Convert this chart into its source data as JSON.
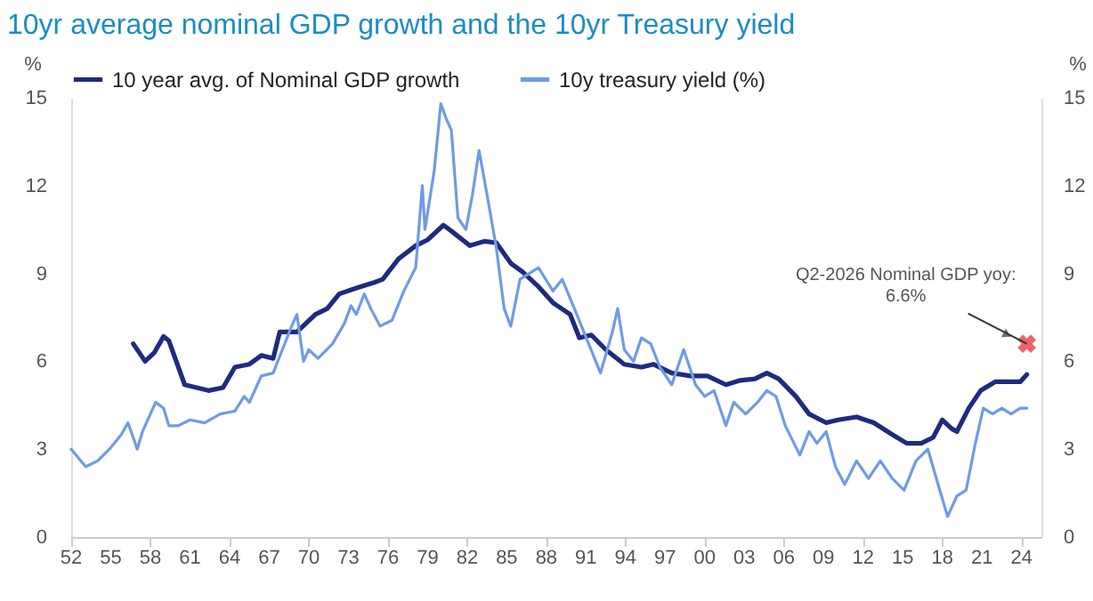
{
  "chart_data": {
    "type": "line",
    "title": "10yr average nominal GDP growth and the 10yr Treasury yield",
    "ylabel": "%",
    "y2label": "%",
    "xlim": [
      1952,
      2025.5
    ],
    "xticks": [
      {
        "value": 1952,
        "label": "52"
      },
      {
        "value": 1955,
        "label": "55"
      },
      {
        "value": 1958,
        "label": "58"
      },
      {
        "value": 1961,
        "label": "61"
      },
      {
        "value": 1964,
        "label": "64"
      },
      {
        "value": 1967,
        "label": "67"
      },
      {
        "value": 1970,
        "label": "70"
      },
      {
        "value": 1973,
        "label": "73"
      },
      {
        "value": 1976,
        "label": "76"
      },
      {
        "value": 1979,
        "label": "79"
      },
      {
        "value": 1982,
        "label": "82"
      },
      {
        "value": 1985,
        "label": "85"
      },
      {
        "value": 1988,
        "label": "88"
      },
      {
        "value": 1991,
        "label": "91"
      },
      {
        "value": 1994,
        "label": "94"
      },
      {
        "value": 1997,
        "label": "97"
      },
      {
        "value": 2000,
        "label": "00"
      },
      {
        "value": 2003,
        "label": "03"
      },
      {
        "value": 2006,
        "label": "06"
      },
      {
        "value": 2009,
        "label": "09"
      },
      {
        "value": 2012,
        "label": "12"
      },
      {
        "value": 2015,
        "label": "15"
      },
      {
        "value": 2018,
        "label": "18"
      },
      {
        "value": 2021,
        "label": "21"
      },
      {
        "value": 2024,
        "label": "24"
      }
    ],
    "ylim": [
      0,
      15
    ],
    "yticks": [
      0,
      3,
      6,
      9,
      12,
      15
    ],
    "y2lim": [
      0,
      15
    ],
    "y2ticks": [
      0,
      3,
      6,
      9,
      12,
      15
    ],
    "legend": "top",
    "grid": false,
    "marker": "none",
    "series": [
      {
        "name": "10 year avg. of Nominal GDP growth",
        "color": "#1f2a80",
        "x": [
          1956.7,
          1957.6,
          1958.3,
          1959.0,
          1959.4,
          1960.6,
          1961.5,
          1962.4,
          1963.5,
          1964.4,
          1965.5,
          1966.4,
          1967.3,
          1967.8,
          1969.1,
          1970.5,
          1971.4,
          1972.3,
          1973.6,
          1975.0,
          1975.6,
          1976.8,
          1978.1,
          1979.0,
          1980.2,
          1980.8,
          1982.2,
          1983.3,
          1984.2,
          1985.3,
          1986.2,
          1987.4,
          1988.5,
          1989.8,
          1990.5,
          1991.4,
          1992.5,
          1993.9,
          1995.2,
          1996.1,
          1997.5,
          1998.9,
          2000.2,
          2001.6,
          2002.7,
          2003.8,
          2004.7,
          2005.6,
          2006.9,
          2007.9,
          2009.2,
          2010.1,
          2011.5,
          2012.8,
          2014.2,
          2015.3,
          2016.4,
          2017.3,
          2018.0,
          2018.7,
          2019.1,
          2020.0,
          2020.9,
          2022.0,
          2023.2,
          2023.9,
          2024.4
        ],
        "values": [
          6.6,
          6.0,
          6.3,
          6.85,
          6.7,
          5.2,
          5.1,
          5.0,
          5.1,
          5.8,
          5.9,
          6.2,
          6.1,
          7.0,
          7.0,
          7.6,
          7.8,
          8.3,
          8.5,
          8.7,
          8.8,
          9.5,
          9.95,
          10.15,
          10.65,
          10.45,
          9.95,
          10.1,
          10.05,
          9.35,
          9.05,
          8.55,
          8.0,
          7.6,
          6.8,
          6.9,
          6.4,
          5.9,
          5.8,
          5.9,
          5.6,
          5.5,
          5.5,
          5.2,
          5.35,
          5.4,
          5.6,
          5.4,
          4.8,
          4.2,
          3.9,
          4.0,
          4.1,
          3.9,
          3.5,
          3.2,
          3.2,
          3.4,
          4.0,
          3.7,
          3.6,
          4.4,
          5.0,
          5.3,
          5.3,
          5.3,
          5.55
        ]
      },
      {
        "name": "10y treasury yield (%)",
        "color": "#6f9be8",
        "x": [
          1952.0,
          1953.1,
          1954.0,
          1954.9,
          1955.8,
          1956.3,
          1956.7,
          1957.0,
          1957.4,
          1958.4,
          1959.0,
          1959.4,
          1960.1,
          1961.0,
          1962.1,
          1963.3,
          1964.4,
          1965.1,
          1965.5,
          1966.4,
          1967.3,
          1968.0,
          1968.7,
          1969.1,
          1969.6,
          1970.0,
          1970.7,
          1971.8,
          1972.7,
          1973.2,
          1973.6,
          1974.2,
          1974.7,
          1975.4,
          1976.3,
          1977.2,
          1978.1,
          1978.6,
          1978.8,
          1979.5,
          1980.0,
          1980.4,
          1980.8,
          1981.3,
          1981.9,
          1982.4,
          1982.9,
          1983.5,
          1984.2,
          1984.8,
          1985.3,
          1986.0,
          1986.7,
          1987.4,
          1988.5,
          1989.2,
          1990.3,
          1991.2,
          1992.1,
          1993.0,
          1993.4,
          1993.9,
          1994.6,
          1995.2,
          1995.9,
          1996.6,
          1997.5,
          1998.4,
          1999.3,
          2000.0,
          2000.7,
          2001.6,
          2002.2,
          2003.1,
          2004.0,
          2004.7,
          2005.4,
          2006.1,
          2007.2,
          2007.9,
          2008.5,
          2009.2,
          2009.9,
          2010.6,
          2011.5,
          2012.4,
          2013.3,
          2014.2,
          2015.1,
          2016.0,
          2016.9,
          2017.8,
          2018.4,
          2019.1,
          2019.8,
          2020.5,
          2021.1,
          2021.8,
          2022.5,
          2023.2,
          2023.9,
          2024.4
        ],
        "values": [
          3.0,
          2.4,
          2.6,
          3.0,
          3.5,
          3.9,
          3.4,
          3.0,
          3.6,
          4.6,
          4.4,
          3.8,
          3.8,
          4.0,
          3.9,
          4.2,
          4.3,
          4.8,
          4.6,
          5.5,
          5.6,
          6.4,
          7.2,
          7.6,
          6.0,
          6.4,
          6.1,
          6.6,
          7.3,
          7.9,
          7.6,
          8.3,
          7.8,
          7.2,
          7.4,
          8.4,
          9.2,
          12.0,
          10.5,
          12.5,
          14.8,
          14.3,
          13.9,
          10.9,
          10.5,
          11.7,
          13.2,
          11.7,
          9.9,
          7.8,
          7.2,
          8.8,
          9.0,
          9.2,
          8.4,
          8.8,
          7.6,
          6.6,
          5.6,
          7.0,
          7.8,
          6.4,
          6.0,
          6.8,
          6.6,
          5.8,
          5.2,
          6.4,
          5.2,
          4.8,
          5.0,
          3.8,
          4.6,
          4.2,
          4.6,
          5.0,
          4.8,
          3.8,
          2.8,
          3.6,
          3.2,
          3.6,
          2.4,
          1.8,
          2.6,
          2.0,
          2.6,
          2.0,
          1.6,
          2.6,
          3.0,
          1.6,
          0.7,
          1.4,
          1.6,
          3.2,
          4.4,
          4.2,
          4.4,
          4.2,
          4.4,
          4.4
        ]
      },
      {
        "type": "scatter",
        "axis": "y2",
        "marker": "cross",
        "color": "#e8202a",
        "x": [
          2024.4
        ],
        "values": [
          6.6
        ]
      }
    ],
    "annotations": [
      {
        "text": "Q2-2026 Nominal GDP yoy:\n6.6%",
        "x": 2024.4,
        "y": 6.6
      }
    ]
  }
}
